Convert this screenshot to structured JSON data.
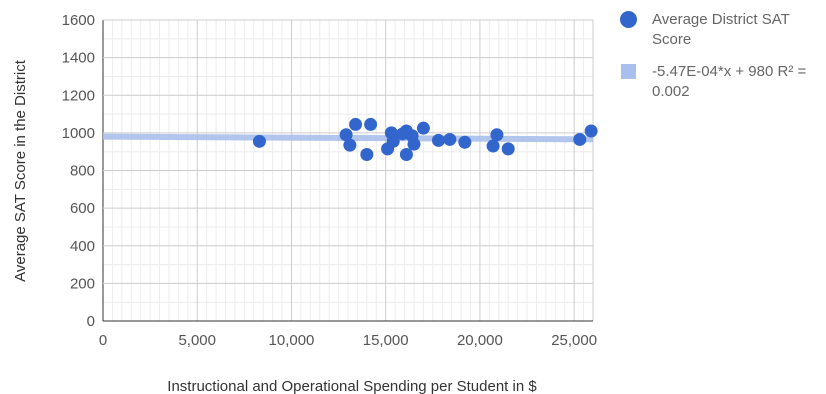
{
  "chart_data": {
    "type": "scatter",
    "title": "",
    "xlabel": "Instructional and Operational Spending per Student in $",
    "ylabel": "Average SAT Score in the District",
    "xlim": [
      0,
      26000
    ],
    "ylim": [
      0,
      1600
    ],
    "x_ticks": [
      "0",
      "5,000",
      "10,000",
      "15,000",
      "20,000",
      "25,000"
    ],
    "x_tick_values": [
      0,
      5000,
      10000,
      15000,
      20000,
      25000
    ],
    "y_ticks": [
      "0",
      "200",
      "400",
      "600",
      "800",
      "1000",
      "1200",
      "1400",
      "1600"
    ],
    "y_tick_values": [
      0,
      200,
      400,
      600,
      800,
      1000,
      1200,
      1400,
      1600
    ],
    "grid": true,
    "legend_position": "right",
    "series": [
      {
        "name": "Average District SAT Score",
        "color": "#3366cc",
        "points": [
          {
            "x": 8300,
            "y": 955
          },
          {
            "x": 12900,
            "y": 990
          },
          {
            "x": 13100,
            "y": 935
          },
          {
            "x": 13400,
            "y": 1045
          },
          {
            "x": 14000,
            "y": 885
          },
          {
            "x": 14200,
            "y": 1045
          },
          {
            "x": 15100,
            "y": 915
          },
          {
            "x": 15300,
            "y": 1000
          },
          {
            "x": 15400,
            "y": 955
          },
          {
            "x": 15900,
            "y": 995
          },
          {
            "x": 16100,
            "y": 1010
          },
          {
            "x": 16100,
            "y": 885
          },
          {
            "x": 16400,
            "y": 985
          },
          {
            "x": 16500,
            "y": 940
          },
          {
            "x": 17000,
            "y": 1025
          },
          {
            "x": 17800,
            "y": 960
          },
          {
            "x": 18400,
            "y": 965
          },
          {
            "x": 19200,
            "y": 950
          },
          {
            "x": 20700,
            "y": 930
          },
          {
            "x": 20900,
            "y": 990
          },
          {
            "x": 21500,
            "y": 915
          },
          {
            "x": 25300,
            "y": 965
          },
          {
            "x": 25900,
            "y": 1010
          }
        ]
      }
    ],
    "trendline": {
      "label": "-5.47E-04*x + 980 R² =",
      "label_line2": "0.002",
      "slope": -0.000547,
      "intercept": 980,
      "color": "#a9bfec"
    }
  }
}
